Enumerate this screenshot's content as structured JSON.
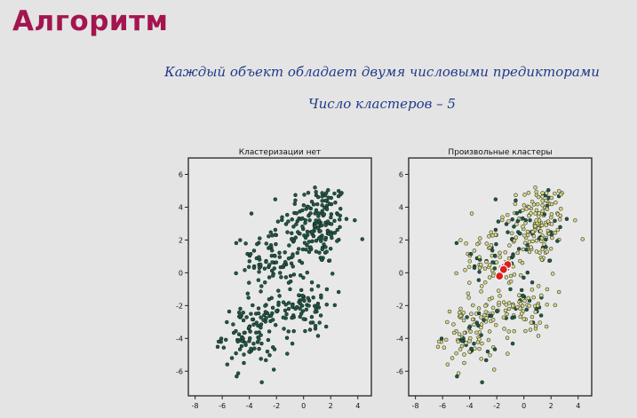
{
  "slide": {
    "title": "Алгоритм",
    "subtitle_line1": "Каждый объект обладает двумя числовыми предикторами",
    "subtitle_line2": "Число кластеров – 5"
  },
  "colors": {
    "title": "#a3154f",
    "subtitle": "#1f3a8a",
    "point_dark": "#1d5a45",
    "point_light": "#d4d985",
    "centroid": "#d91f1f"
  },
  "chart_data": [
    {
      "type": "scatter",
      "title": "Кластеризации нет",
      "xlim": [
        -8.5,
        5
      ],
      "ylim": [
        -7.5,
        7
      ],
      "xticks": [
        -8,
        -6,
        -4,
        -2,
        0,
        2,
        4
      ],
      "yticks": [
        -6,
        -4,
        -2,
        0,
        2,
        4,
        6
      ],
      "point_style": "dark",
      "clusters": [
        {
          "center": [
            1,
            3
          ],
          "spread": [
            1.2,
            1.3
          ],
          "count": 170
        },
        {
          "center": [
            -2.5,
            0.8
          ],
          "spread": [
            1.0,
            1.0
          ],
          "count": 90
        },
        {
          "center": [
            0,
            -2
          ],
          "spread": [
            1.1,
            1.0
          ],
          "count": 90
        },
        {
          "center": [
            -4,
            -3.8
          ],
          "spread": [
            1.0,
            1.0
          ],
          "count": 100
        }
      ],
      "centroids": []
    },
    {
      "type": "scatter",
      "title": "Произвольные кластеры",
      "xlim": [
        -8.5,
        5
      ],
      "ylim": [
        -7.5,
        7
      ],
      "xticks": [
        -8,
        -6,
        -4,
        -2,
        0,
        2,
        4
      ],
      "yticks": [
        -6,
        -4,
        -2,
        0,
        2,
        4,
        6
      ],
      "point_style": "mixed",
      "clusters": [
        {
          "center": [
            1,
            3
          ],
          "spread": [
            1.2,
            1.3
          ],
          "count": 170
        },
        {
          "center": [
            -2.5,
            0.8
          ],
          "spread": [
            1.0,
            1.0
          ],
          "count": 90
        },
        {
          "center": [
            0,
            -2
          ],
          "spread": [
            1.1,
            1.0
          ],
          "count": 90
        },
        {
          "center": [
            -4,
            -3.8
          ],
          "spread": [
            1.0,
            1.0
          ],
          "count": 100
        }
      ],
      "centroids": [
        [
          -1.4,
          0.4
        ],
        [
          -1.3,
          0.3
        ],
        [
          -1.8,
          -0.2
        ],
        [
          -1.2,
          0.5
        ],
        [
          -1.5,
          0.2
        ]
      ]
    }
  ]
}
